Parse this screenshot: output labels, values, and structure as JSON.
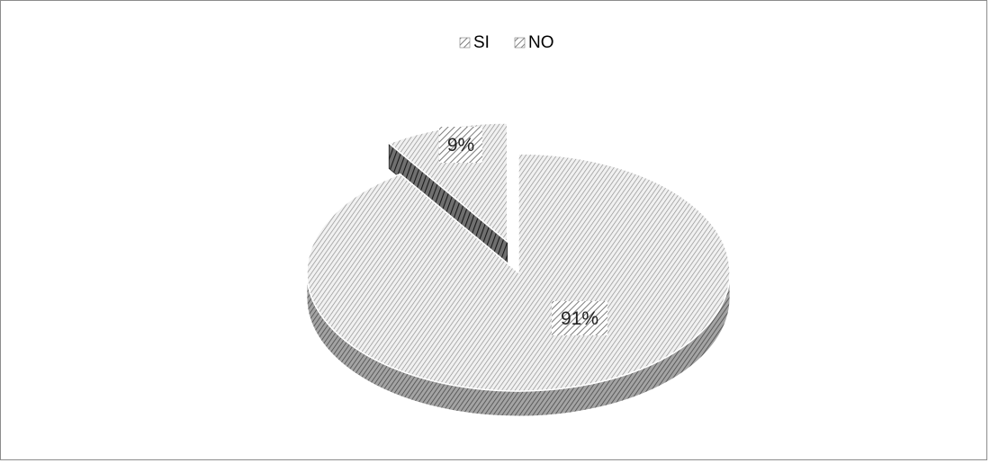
{
  "chart_data": {
    "type": "pie",
    "style": "3d-exploded",
    "title": "",
    "categories": [
      "SI",
      "NO"
    ],
    "values": [
      91,
      9
    ],
    "data_labels": [
      "91%",
      "9%"
    ],
    "legend": {
      "position": "top",
      "entries": [
        "SI",
        "NO"
      ]
    },
    "colors": {
      "SI": "#9a9a9a",
      "NO": "#5a5a5a",
      "border": "#8c8c8c"
    }
  }
}
